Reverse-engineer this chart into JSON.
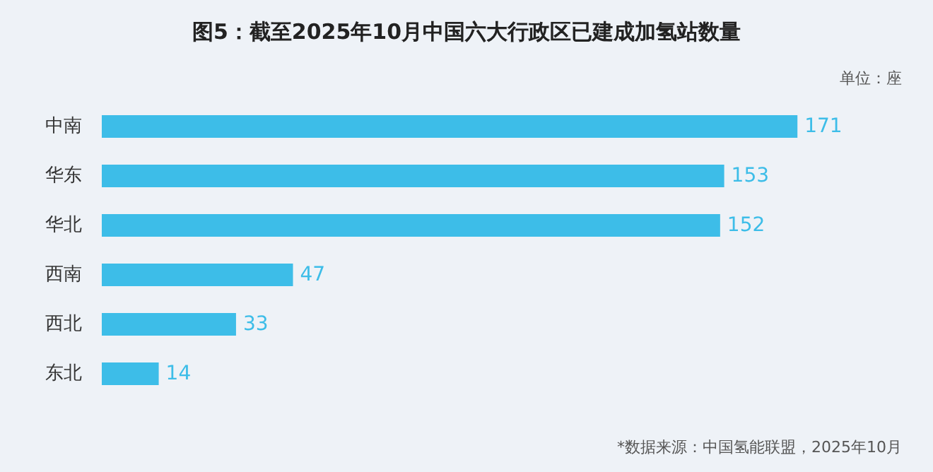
{
  "chart_data": {
    "type": "bar",
    "orientation": "horizontal",
    "title": "图5：截至2025年10月中国六大行政区已建成加氢站数量",
    "categories": [
      "中南",
      "华东",
      "华北",
      "西南",
      "西北",
      "东北"
    ],
    "values": [
      171,
      153,
      152,
      47,
      33,
      14
    ],
    "color": "#3dbde8",
    "data_labels": true,
    "annotations": [
      "单位：座",
      "*数据来源：中国氢能联盟，2025年10月"
    ]
  }
}
